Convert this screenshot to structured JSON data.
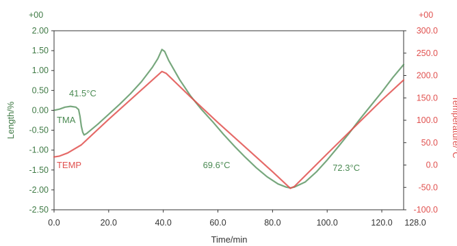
{
  "chart_data": {
    "type": "line",
    "title": "",
    "xlabel": "Time/min",
    "ylabel_left": "Length/%",
    "ylabel_right": "Temperature/°C",
    "exponent_label_left": "+00",
    "exponent_label_right": "+00",
    "xlim": [
      0,
      128
    ],
    "ylim_left": [
      -2.5,
      2.0
    ],
    "ylim_right": [
      -100,
      300
    ],
    "x_ticks": [
      "0.0",
      "20.0",
      "40.0",
      "60.0",
      "80.0",
      "100.0",
      "120.0"
    ],
    "x_end_label": "128.0",
    "y_left_ticks": [
      "2.00",
      "1.50",
      "1.00",
      "0.50",
      "0.00",
      "-0.50",
      "-1.00",
      "-1.50",
      "-2.00",
      "-2.50"
    ],
    "y_right_ticks": [
      "300.0",
      "250.0",
      "200.0",
      "150.0",
      "100.0",
      "50.0",
      "0.0",
      "-50.0",
      "-100.0"
    ],
    "colors": {
      "tma": "#4a8a52",
      "temp": "#e0504e",
      "axis_left": "#3f7a45",
      "axis_right": "#e0504e"
    },
    "series": [
      {
        "name": "TMA",
        "axis": "left",
        "x": [
          0,
          2,
          4,
          6,
          8,
          9,
          9.5,
          10,
          10.5,
          11,
          12,
          16,
          20,
          24,
          28,
          32,
          36,
          38,
          39.5,
          40.5,
          42,
          46,
          50,
          54,
          58,
          62,
          66,
          70,
          74,
          78,
          82,
          85,
          86.5,
          88,
          92,
          96,
          100,
          104,
          108,
          112,
          116,
          120,
          124,
          128
        ],
        "y": [
          0.0,
          0.03,
          0.08,
          0.1,
          0.08,
          0.02,
          -0.15,
          -0.4,
          -0.55,
          -0.62,
          -0.58,
          -0.35,
          -0.1,
          0.15,
          0.42,
          0.72,
          1.08,
          1.3,
          1.53,
          1.48,
          1.25,
          0.77,
          0.36,
          0.02,
          -0.28,
          -0.6,
          -0.9,
          -1.18,
          -1.44,
          -1.67,
          -1.85,
          -1.93,
          -1.95,
          -1.93,
          -1.8,
          -1.55,
          -1.25,
          -0.92,
          -0.58,
          -0.22,
          0.12,
          0.46,
          0.82,
          1.15
        ]
      },
      {
        "name": "TEMP",
        "axis": "right",
        "x": [
          0,
          2,
          5,
          10,
          20,
          30,
          39.5,
          41,
          50,
          60,
          70,
          80,
          86.5,
          88,
          100,
          110,
          120,
          128
        ],
        "y": [
          18,
          20,
          27,
          45,
          102,
          157,
          209,
          205,
          152,
          95,
          40,
          -15,
          -52,
          -48,
          25,
          85,
          145,
          190
        ]
      }
    ],
    "annotations": [
      {
        "text": "41.5°C",
        "x": 5.5,
        "y": 0.35,
        "axis": "left",
        "color": "tma"
      },
      {
        "text": "TMA",
        "x": 1,
        "y": -0.32,
        "axis": "left",
        "color": "tma"
      },
      {
        "text": "TEMP",
        "x": 1,
        "y": -1.45,
        "axis": "left",
        "color": "temp"
      },
      {
        "text": "69.6°C",
        "x": 54.5,
        "y": -1.45,
        "axis": "left",
        "color": "tma"
      },
      {
        "text": "72.3°C",
        "x": 102,
        "y": -1.52,
        "axis": "left",
        "color": "tma"
      }
    ]
  }
}
